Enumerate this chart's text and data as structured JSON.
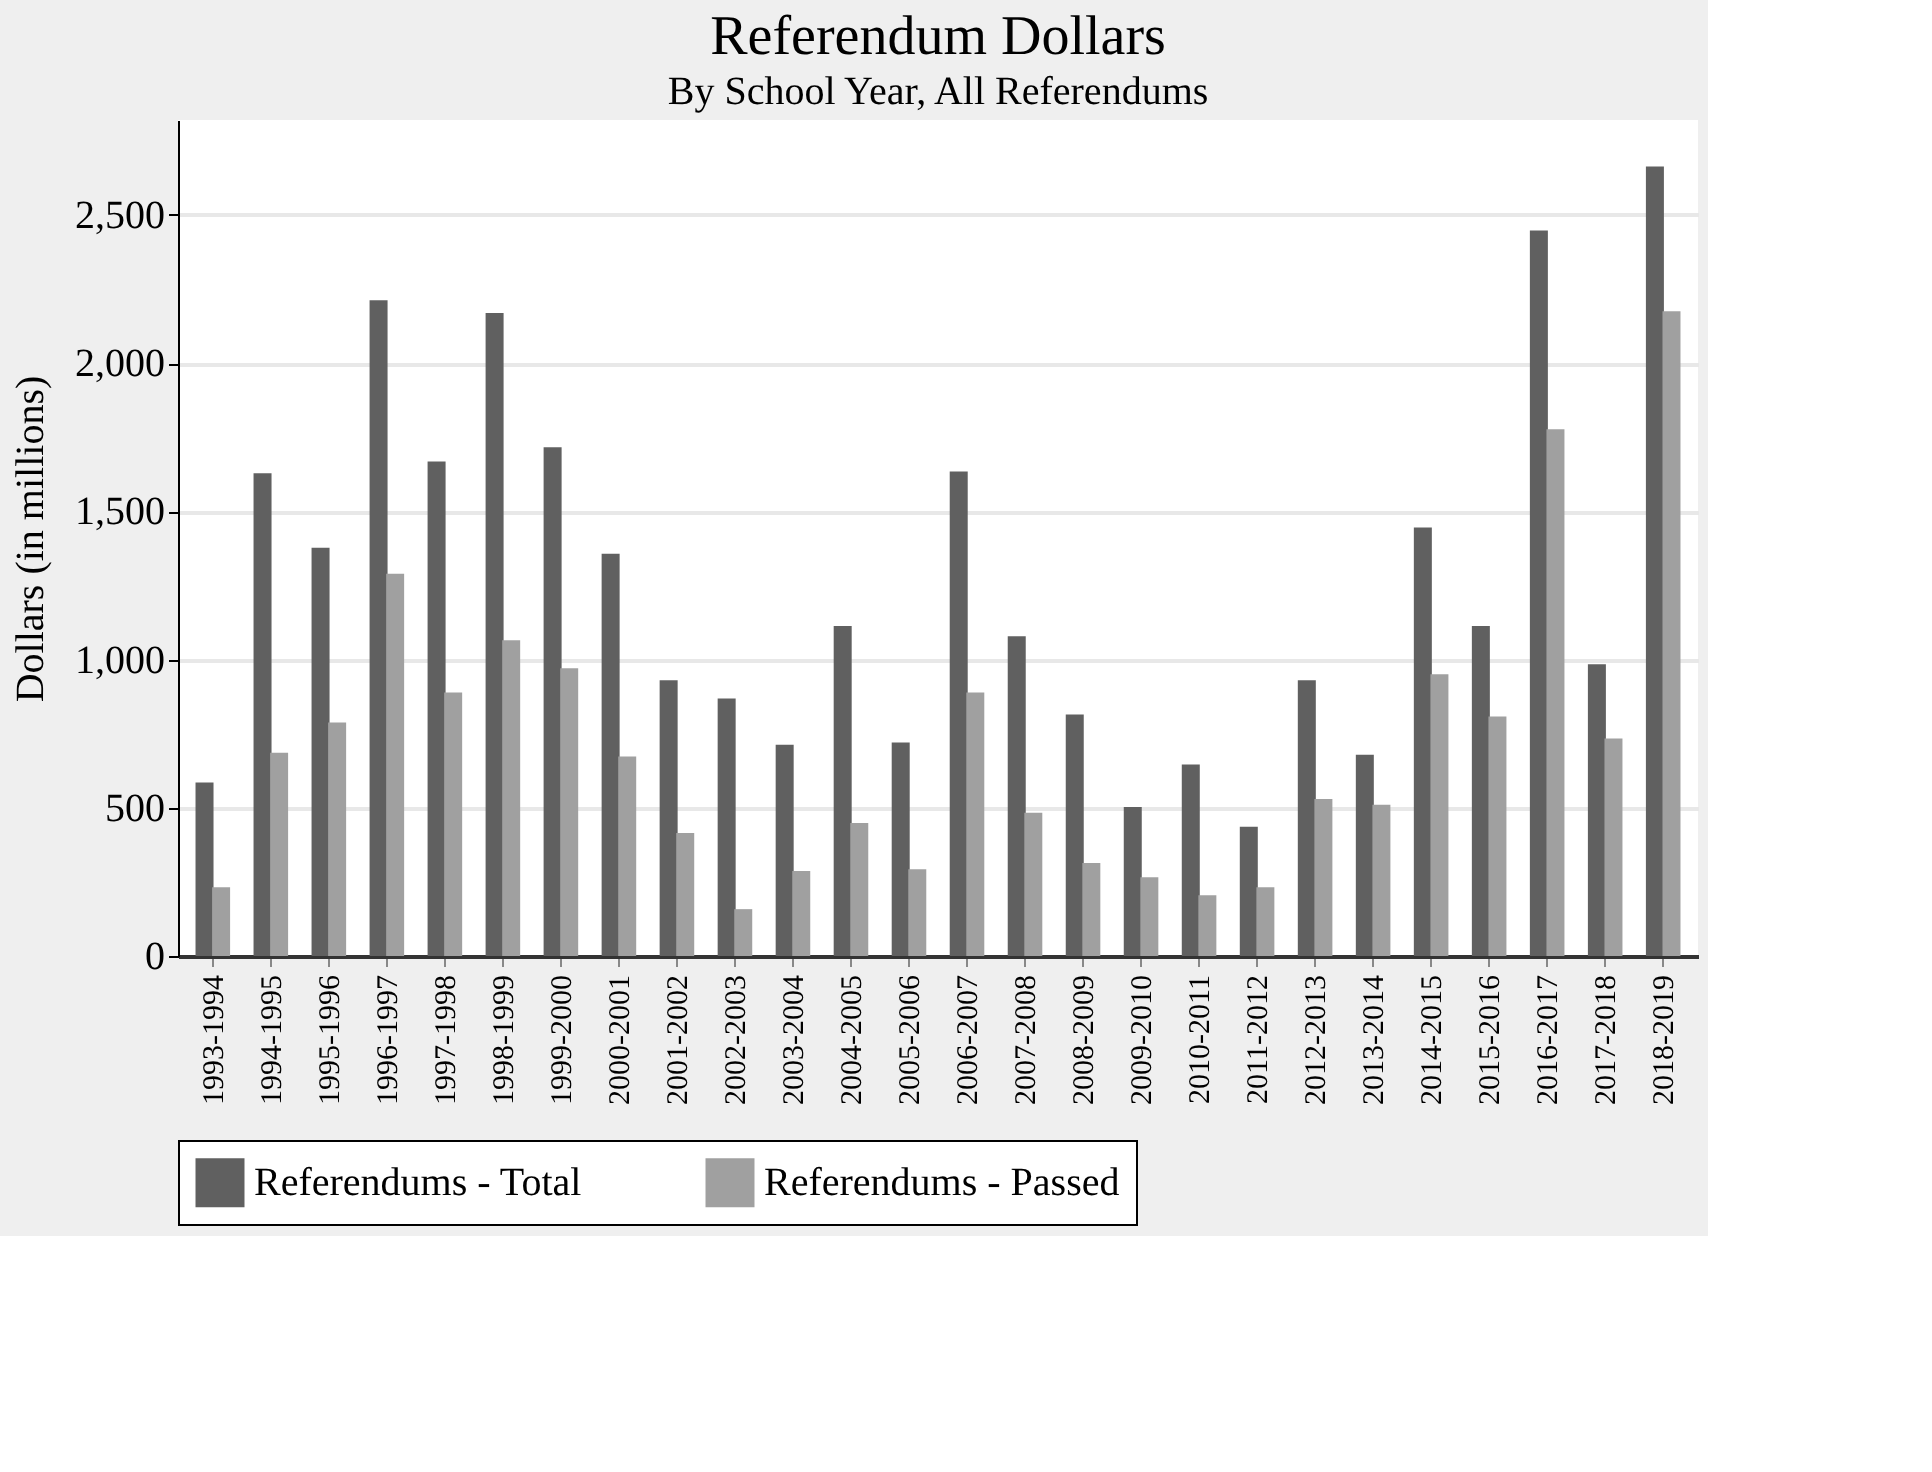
{
  "chart_data": {
    "type": "bar",
    "title": "Referendum Dollars",
    "subtitle": "By School Year, All Referendums",
    "ylabel": "Dollars (in millions)",
    "categories": [
      "1993-1994",
      "1994-1995",
      "1995-1996",
      "1996-1997",
      "1997-1998",
      "1998-1999",
      "1999-2000",
      "2000-2001",
      "2001-2002",
      "2002-2003",
      "2003-2004",
      "2004-2005",
      "2005-2006",
      "2006-2007",
      "2007-2008",
      "2008-2009",
      "2009-2010",
      "2010-2011",
      "2011-2012",
      "2012-2013",
      "2013-2014",
      "2014-2015",
      "2015-2016",
      "2016-2017",
      "2017-2018",
      "2018-2019"
    ],
    "series": [
      {
        "name": "Referendums - Total",
        "color": "#606060",
        "values": [
          585,
          1628,
          1377,
          2212,
          1668,
          2169,
          1716,
          1357,
          930,
          869,
          713,
          1113,
          720,
          1634,
          1079,
          815,
          503,
          646,
          436,
          930,
          679,
          1445,
          1113,
          2447,
          984,
          2663
        ]
      },
      {
        "name": "Referendums - Passed",
        "color": "#a0a0a0",
        "values": [
          232,
          686,
          788,
          1289,
          889,
          1065,
          971,
          673,
          415,
          158,
          287,
          449,
          293,
          889,
          483,
          314,
          266,
          205,
          232,
          530,
          510,
          950,
          808,
          1777,
          734,
          2175
        ]
      }
    ],
    "ylim": [
      0,
      2820
    ],
    "yticks": [
      0,
      {
        "value": 500,
        "label": "500"
      },
      {
        "value": 1000,
        "label": "1,000"
      },
      {
        "value": 1500,
        "label": "1,500"
      },
      {
        "value": 2000,
        "label": "2,000"
      },
      {
        "value": 2500,
        "label": "2,500"
      }
    ],
    "grid": "y",
    "legend": "bottom"
  }
}
